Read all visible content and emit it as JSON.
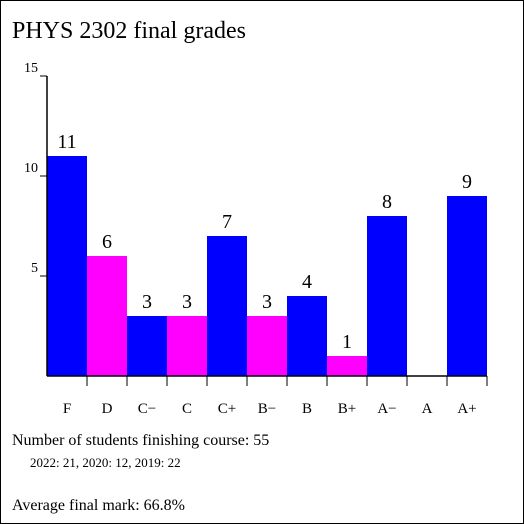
{
  "chart_data": {
    "type": "bar",
    "title": "PHYS 2302 final grades",
    "categories": [
      "F",
      "D",
      "C−",
      "C",
      "C+",
      "B−",
      "B",
      "B+",
      "A−",
      "A",
      "A+"
    ],
    "values": [
      11,
      6,
      3,
      3,
      7,
      3,
      4,
      1,
      8,
      0,
      9
    ],
    "colors": [
      "#0000ff",
      "#ff00ff",
      "#0000ff",
      "#ff00ff",
      "#0000ff",
      "#ff00ff",
      "#0000ff",
      "#ff00ff",
      "#0000ff",
      "#0000ff",
      "#0000ff"
    ],
    "ylim": [
      0,
      15
    ],
    "yticks": [
      5,
      10,
      15
    ],
    "grid": false,
    "notes": [
      "Number of students finishing course: 55",
      "2022: 21, 2020: 12, 2019: 22",
      "Average final mark: 66.8%"
    ]
  }
}
